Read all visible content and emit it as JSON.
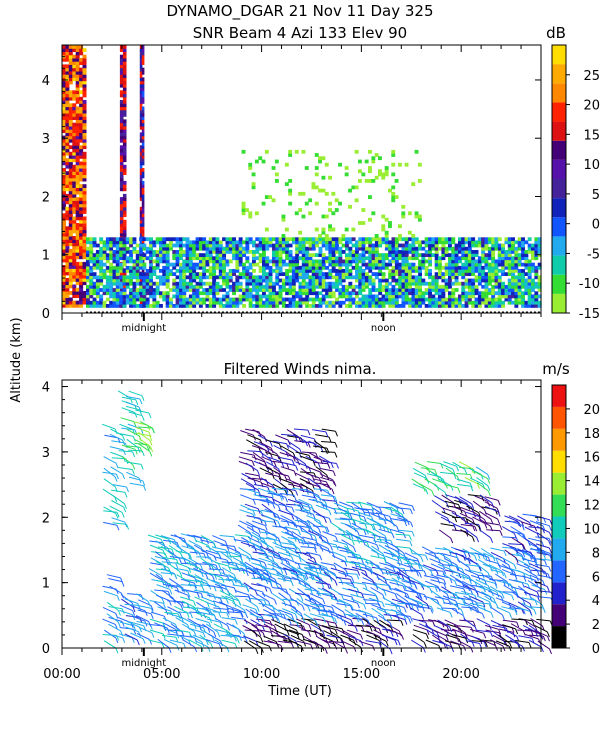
{
  "page": {
    "title_line1": "DYNAMO_DGAR  21 Nov 11 Day 325",
    "title_line2": "SNR Beam 4 Azi 133 Elev 90",
    "shared_ylabel": "Altitude (km)",
    "xlabel": "Time (UT)",
    "x_ticks": [
      "00:00",
      "05:00",
      "10:00",
      "15:00",
      "20:00"
    ],
    "markers": [
      "midnight",
      "noon"
    ]
  },
  "chart_data": [
    {
      "type": "heatmap",
      "subtitle": "SNR Beam 4 Azi 133 Elev 90",
      "ylabel": "Altitude (km)",
      "x_unit": "hours UT",
      "xlim": [
        0,
        24
      ],
      "ylim": [
        0,
        4.6
      ],
      "y_ticks": [
        0,
        1,
        2,
        3,
        4
      ],
      "colorbar": {
        "unit": "dB",
        "range": [
          -15,
          30
        ],
        "tick_labels": [
          -15,
          -10,
          -5,
          0,
          5,
          10,
          15,
          20,
          25
        ],
        "colors": [
          "#99ee33",
          "#33dd33",
          "#11ccaa",
          "#22aaee",
          "#1155ff",
          "#1122bb",
          "#442299",
          "#5511aa",
          "#440077",
          "#dd1111",
          "#ff2200",
          "#ff8800",
          "#ffaa00",
          "#ffdd00"
        ]
      },
      "features": [
        {
          "desc": "strong echo column",
          "x": [
            0.0,
            1.2
          ],
          "y": [
            0.1,
            4.6
          ],
          "snr_db": [
            10,
            28
          ]
        },
        {
          "desc": "echo column",
          "x": [
            2.9,
            3.2
          ],
          "y": [
            0.1,
            4.6
          ],
          "snr_db": [
            5,
            20
          ]
        },
        {
          "desc": "echo column",
          "x": [
            3.9,
            4.1
          ],
          "y": [
            0.1,
            4.6
          ],
          "snr_db": [
            0,
            20
          ]
        },
        {
          "desc": "boundary layer echo",
          "x": [
            1.2,
            24.0
          ],
          "y": [
            0.1,
            1.3
          ],
          "snr_db": [
            -15,
            5
          ]
        },
        {
          "desc": "scattered weak echoes",
          "x": [
            9.0,
            18.0
          ],
          "y": [
            1.3,
            2.8
          ],
          "snr_db": [
            -15,
            -10
          ]
        }
      ]
    },
    {
      "type": "barbs",
      "title": "Filtered Winds nima.",
      "ylabel": "Altitude (km)",
      "xlabel": "Time (UT)",
      "xlim": [
        0,
        24
      ],
      "ylim": [
        0,
        4.1
      ],
      "x_ticks": [
        "00:00",
        "05:00",
        "10:00",
        "15:00",
        "20:00"
      ],
      "y_ticks": [
        0,
        1,
        2,
        3,
        4
      ],
      "colorbar": {
        "unit": "m/s",
        "range": [
          0,
          22
        ],
        "tick_labels": [
          0,
          2,
          4,
          6,
          8,
          10,
          12,
          14,
          16,
          18,
          20
        ],
        "colors": [
          "#000000",
          "#440077",
          "#2222cc",
          "#2266ff",
          "#22aaee",
          "#11ccbb",
          "#33dd55",
          "#99ee33",
          "#ffdd00",
          "#ff9900",
          "#ff5500",
          "#ee1111"
        ]
      },
      "clusters": [
        {
          "t": [
            2.0,
            2.7
          ],
          "h": [
            1.9,
            3.5
          ],
          "speed": 9
        },
        {
          "t": [
            2.8,
            3.6
          ],
          "h": [
            2.5,
            4.0
          ],
          "speed": 10
        },
        {
          "t": [
            3.6,
            4.0
          ],
          "h": [
            3.1,
            3.7
          ],
          "speed": 12
        },
        {
          "t": [
            2.0,
            2.5
          ],
          "h": [
            0.1,
            1.2
          ],
          "speed": 8
        },
        {
          "t": [
            2.8,
            4.0
          ],
          "h": [
            0.2,
            0.9
          ],
          "speed": 7
        },
        {
          "t": [
            4.3,
            8.8
          ],
          "h": [
            0.1,
            1.8
          ],
          "speed": 8
        },
        {
          "t": [
            8.8,
            13.2
          ],
          "h": [
            2.5,
            3.4
          ],
          "speed": 3
        },
        {
          "t": [
            8.8,
            13.2
          ],
          "h": [
            1.2,
            2.5
          ],
          "speed": 7
        },
        {
          "t": [
            9.0,
            16.5
          ],
          "h": [
            0.1,
            0.5
          ],
          "speed": 2
        },
        {
          "t": [
            9.0,
            17.0
          ],
          "h": [
            0.5,
            1.3
          ],
          "speed": 7
        },
        {
          "t": [
            13.5,
            17.0
          ],
          "h": [
            1.3,
            2.3
          ],
          "speed": 8
        },
        {
          "t": [
            17.5,
            21.0
          ],
          "h": [
            2.5,
            2.9
          ],
          "speed": 11
        },
        {
          "t": [
            18.5,
            21.5
          ],
          "h": [
            1.8,
            2.4
          ],
          "speed": 3
        },
        {
          "t": [
            17.0,
            24.0
          ],
          "h": [
            0.6,
            1.6
          ],
          "speed": 7
        },
        {
          "t": [
            17.5,
            24.0
          ],
          "h": [
            0.1,
            0.5
          ],
          "speed": 3
        },
        {
          "t": [
            22.0,
            24.0
          ],
          "h": [
            1.5,
            2.1
          ],
          "speed": 5
        }
      ]
    }
  ]
}
